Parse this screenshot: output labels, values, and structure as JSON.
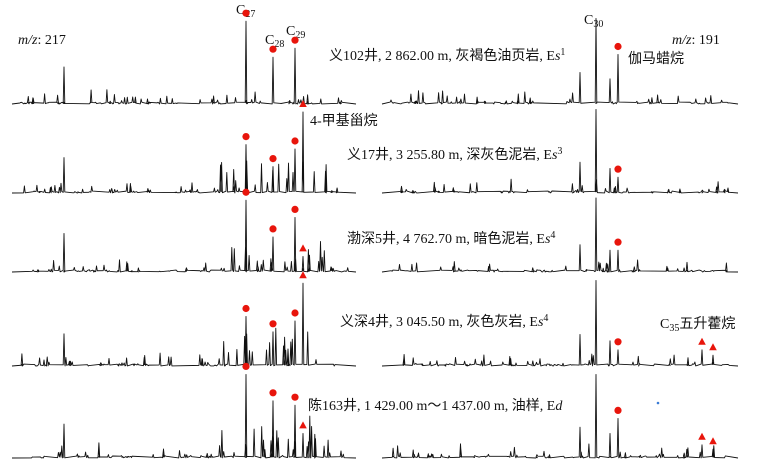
{
  "chart_data": {
    "type": "line",
    "left_label": "m/z: 217",
    "right_label": "m/z: 191",
    "left_mz": {
      "prefix": "m/z",
      "value": "217"
    },
    "right_mz": {
      "prefix": "m/z",
      "value": "191"
    },
    "peak_labels": {
      "c27": {
        "base": "C",
        "sub": "27"
      },
      "c28": {
        "base": "C",
        "sub": "28"
      },
      "c29": {
        "base": "C",
        "sub": "29"
      },
      "c30": {
        "base": "C",
        "sub": "30"
      }
    },
    "legend": {
      "gammacerane": "伽马蜡烷",
      "methylsterane": "4-甲基甾烷",
      "c35": {
        "base": "C",
        "sub": "35",
        "rest": "五升藿烷"
      }
    },
    "blue_mark_color": "#3a7bd5",
    "marker_colors": {
      "circle": "#e8150c",
      "triangle": "#e8150c"
    },
    "samples": [
      {
        "id": "s1",
        "label": {
          "well": "义102井",
          "depth": "2 862.00 m",
          "lith": "灰褐色油页岩",
          "fm": "Es",
          "fm_sup": "1"
        },
        "left_peaks": [
          {
            "name": "C27",
            "rel": 0.92,
            "marker": "circle"
          },
          {
            "name": "C28",
            "rel": 0.52,
            "marker": "circle"
          },
          {
            "name": "C29",
            "rel": 0.62,
            "marker": "circle"
          }
        ],
        "right_peaks": [
          {
            "name": "C30",
            "rel": 0.95
          },
          {
            "name": "gammacerane",
            "rel": 0.55,
            "marker": "circle"
          }
        ]
      },
      {
        "id": "s2",
        "label": {
          "well": "义17井",
          "depth": "3 255.80 m",
          "lith": "深灰色泥岩",
          "fm": "Es",
          "fm_sup": "3"
        },
        "left_peaks": [
          {
            "name": "C27",
            "rel": 0.55,
            "marker": "circle"
          },
          {
            "name": "C28",
            "rel": 0.3,
            "marker": "circle"
          },
          {
            "name": "C29",
            "rel": 0.5,
            "marker": "circle"
          },
          {
            "name": "4-methylsterane",
            "rel": 0.92,
            "marker": "triangle"
          }
        ],
        "right_peaks": [
          {
            "name": "C30",
            "rel": 0.95
          },
          {
            "name": "gammacerane",
            "rel": 0.18,
            "marker": "circle"
          }
        ]
      },
      {
        "id": "s3",
        "label": {
          "well": "渤深5井",
          "depth": "4 762.70 m",
          "lith": "暗色泥岩",
          "fm": "Es",
          "fm_sup": "4"
        },
        "left_peaks": [
          {
            "name": "C27",
            "rel": 0.92,
            "marker": "circle"
          },
          {
            "name": "C28",
            "rel": 0.45,
            "marker": "circle"
          },
          {
            "name": "C29",
            "rel": 0.7,
            "marker": "circle"
          },
          {
            "name": "4-methylsterane",
            "rel": 0.2,
            "marker": "triangle"
          }
        ],
        "right_peaks": [
          {
            "name": "C30",
            "rel": 0.95
          },
          {
            "name": "gammacerane",
            "rel": 0.28,
            "marker": "circle"
          }
        ]
      },
      {
        "id": "s4",
        "label": {
          "well": "义深4井",
          "depth": "3 045.50 m",
          "lith": "灰色灰岩",
          "fm": "Es",
          "fm_sup": "4"
        },
        "left_peaks": [
          {
            "name": "C27",
            "rel": 0.55,
            "marker": "circle"
          },
          {
            "name": "C28",
            "rel": 0.38,
            "marker": "circle"
          },
          {
            "name": "C29",
            "rel": 0.5,
            "marker": "circle"
          },
          {
            "name": "4-methylsterane",
            "rel": 0.92,
            "marker": "triangle"
          }
        ],
        "right_peaks": [
          {
            "name": "C30",
            "rel": 0.95
          },
          {
            "name": "gammacerane",
            "rel": 0.18,
            "marker": "circle"
          },
          {
            "name": "C35-a",
            "rel": 0.18,
            "marker": "triangle"
          },
          {
            "name": "C35-b",
            "rel": 0.12,
            "marker": "triangle"
          }
        ]
      },
      {
        "id": "s5",
        "label": {
          "well": "陈163井",
          "depth": "1 429.00 m～1 437.00 m",
          "lith": "油样",
          "fm": "Ed",
          "fm_sup": ""
        },
        "left_peaks": [
          {
            "name": "C27",
            "rel": 0.95,
            "marker": "circle"
          },
          {
            "name": "C28",
            "rel": 0.65,
            "marker": "circle"
          },
          {
            "name": "C29",
            "rel": 0.6,
            "marker": "circle"
          },
          {
            "name": "4-methylsterane",
            "rel": 0.28,
            "marker": "triangle"
          }
        ],
        "right_peaks": [
          {
            "name": "C30",
            "rel": 0.95
          },
          {
            "name": "gammacerane",
            "rel": 0.45,
            "marker": "circle"
          },
          {
            "name": "C35-a",
            "rel": 0.15,
            "marker": "triangle"
          },
          {
            "name": "C35-b",
            "rel": 0.1,
            "marker": "triangle"
          }
        ]
      }
    ]
  }
}
